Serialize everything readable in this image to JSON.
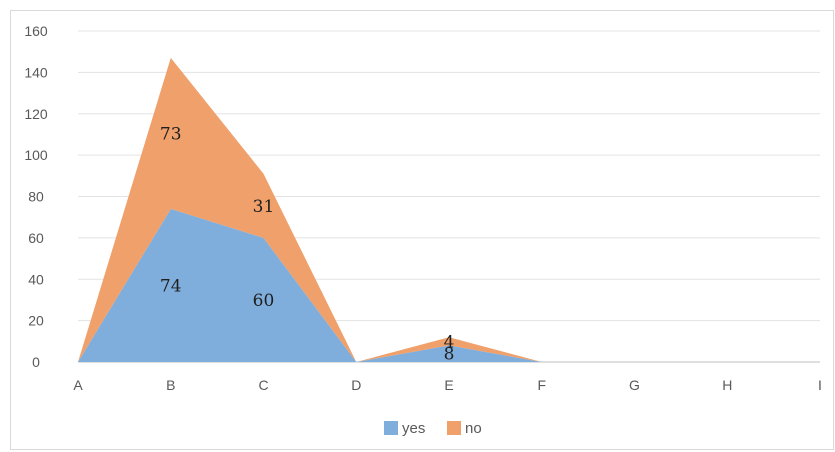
{
  "chart_data": {
    "type": "area",
    "stacked": true,
    "categories": [
      "A",
      "B",
      "C",
      "D",
      "E",
      "F",
      "G",
      "H",
      "I"
    ],
    "series": [
      {
        "name": "yes",
        "color": "#7FAEDC",
        "values": [
          0,
          74,
          60,
          0,
          8,
          0,
          0,
          0,
          0
        ]
      },
      {
        "name": "no",
        "color": "#F0A06A",
        "values": [
          0,
          73,
          31,
          0,
          4,
          0,
          0,
          0,
          0
        ]
      }
    ],
    "data_labels": {
      "yes": [
        "",
        "74",
        "60",
        "",
        "8",
        "",
        "",
        "",
        ""
      ],
      "no": [
        "",
        "73",
        "31",
        "",
        "4",
        "",
        "",
        "",
        ""
      ]
    },
    "ylim": [
      0,
      160
    ],
    "yticks": [
      "0",
      "20",
      "40",
      "60",
      "80",
      "100",
      "120",
      "140",
      "160"
    ],
    "grid": true,
    "legend_position": "bottom"
  }
}
